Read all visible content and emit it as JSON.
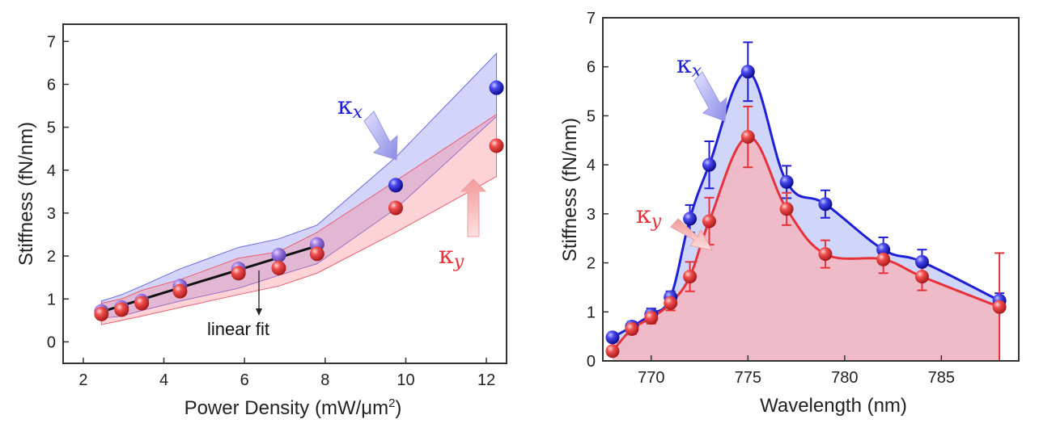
{
  "chart_data": [
    {
      "type": "scatter",
      "xlabel": "Power Density (mW/μm",
      "xlabel_sup": "2",
      "xlabel_end": ")",
      "ylabel": "Stiffness (fN/nm)",
      "xlim": [
        1.5,
        12.5
      ],
      "ylim": [
        -0.5,
        7.4
      ],
      "x_ticks": [
        "2",
        "4",
        "6",
        "8",
        "10",
        "12"
      ],
      "y_ticks": [
        "0",
        "1",
        "2",
        "3",
        "4",
        "5",
        "6",
        "7"
      ],
      "series": [
        {
          "name": "κx",
          "color": "#1f1fd6",
          "x": [
            2.45,
            2.95,
            3.45,
            4.4,
            5.85,
            6.85,
            7.8,
            9.75,
            12.25
          ],
          "values": [
            0.71,
            0.8,
            0.95,
            1.3,
            1.7,
            2.02,
            2.27,
            3.65,
            5.92
          ],
          "band_upper": [
            0.95,
            1.1,
            1.3,
            1.7,
            2.2,
            2.4,
            2.72,
            4.3,
            6.72
          ],
          "band_lower": [
            0.55,
            0.6,
            0.73,
            0.95,
            1.25,
            1.55,
            1.82,
            3.1,
            5.25
          ]
        },
        {
          "name": "κy",
          "color": "#e8323a",
          "x": [
            2.45,
            2.95,
            3.45,
            4.4,
            5.85,
            6.85,
            7.8,
            9.75,
            12.25
          ],
          "values": [
            0.65,
            0.75,
            0.9,
            1.18,
            1.6,
            1.72,
            2.05,
            3.12,
            4.57
          ],
          "band_upper": [
            0.9,
            1.0,
            1.2,
            1.45,
            1.95,
            2.1,
            2.55,
            3.75,
            5.3
          ],
          "band_lower": [
            0.4,
            0.5,
            0.6,
            0.8,
            1.1,
            1.3,
            1.6,
            2.55,
            3.85
          ]
        }
      ],
      "fit": {
        "label": "linear fit",
        "x": [
          2.45,
          7.85
        ],
        "values": [
          0.7,
          2.25
        ]
      },
      "labels": {
        "kx_base": "κ",
        "kx_sub": "x",
        "ky_base": "κ",
        "ky_sub": "y"
      }
    },
    {
      "type": "line",
      "xlabel": "Wavelength (nm)",
      "ylabel": "Stiffness (fN/nm)",
      "xlim": [
        767.5,
        789
      ],
      "ylim": [
        0,
        7
      ],
      "x_ticks": [
        "770",
        "775",
        "780",
        "785"
      ],
      "y_ticks": [
        "0",
        "1",
        "2",
        "3",
        "4",
        "5",
        "6",
        "7"
      ],
      "series": [
        {
          "name": "κx",
          "color": "#1f1fd6",
          "x": [
            768,
            769,
            770,
            771,
            772,
            773,
            775,
            777,
            779,
            782,
            784,
            788
          ],
          "values": [
            0.48,
            0.7,
            0.95,
            1.3,
            2.9,
            4.0,
            5.9,
            3.65,
            3.2,
            2.27,
            2.02,
            1.23
          ],
          "errors": [
            0.08,
            0.1,
            0.12,
            0.12,
            0.28,
            0.48,
            0.6,
            0.33,
            0.28,
            0.25,
            0.25,
            0.15
          ]
        },
        {
          "name": "κy",
          "color": "#e8323a",
          "x": [
            768,
            769,
            770,
            771,
            772,
            773,
            775,
            777,
            779,
            782,
            784,
            788
          ],
          "values": [
            0.2,
            0.65,
            0.88,
            1.18,
            1.72,
            2.85,
            4.57,
            3.1,
            2.18,
            2.07,
            1.72,
            1.1
          ],
          "errors": [
            0.08,
            0.1,
            0.12,
            0.15,
            0.3,
            0.48,
            0.62,
            0.33,
            0.28,
            0.28,
            0.28,
            1.1
          ]
        }
      ],
      "labels": {
        "kx_base": "κ",
        "kx_sub": "x",
        "ky_base": "κ",
        "ky_sub": "y"
      }
    }
  ]
}
